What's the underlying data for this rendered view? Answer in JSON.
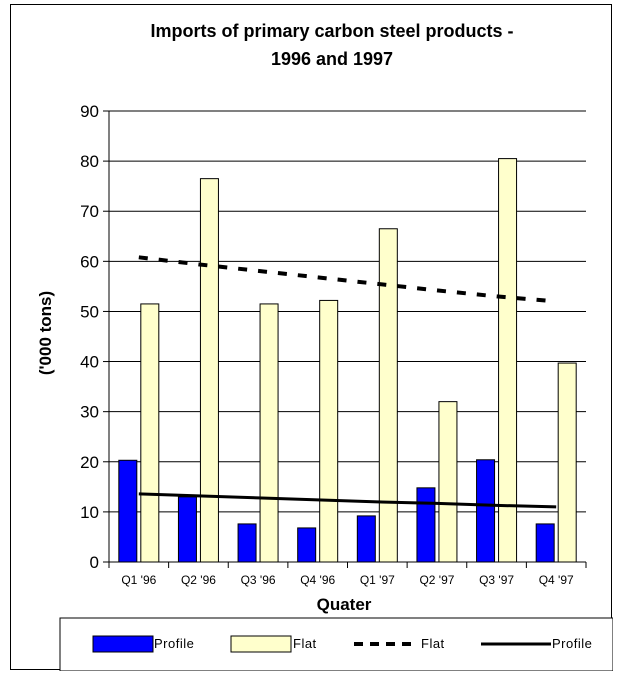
{
  "chart_data": {
    "type": "bar",
    "title_line1": "Imports of primary carbon steel products -",
    "title_line2": "1996 and 1997",
    "xlabel": "Quater",
    "ylabel": "('000 tons)",
    "ylim": [
      0,
      90
    ],
    "yticks": [
      0,
      10,
      20,
      30,
      40,
      50,
      60,
      70,
      80,
      90
    ],
    "grid": true,
    "legend_position": "bottom",
    "categories": [
      "Q1 '96",
      "Q2 '96",
      "Q3 '96",
      "Q4 '96",
      "Q1 '97",
      "Q2 '97",
      "Q3 '97",
      "Q4 '97"
    ],
    "series": [
      {
        "name": "Profile",
        "kind": "bar",
        "color": "#0000ff",
        "values": [
          20.3,
          13.0,
          7.6,
          6.8,
          9.2,
          14.8,
          20.4,
          7.6
        ]
      },
      {
        "name": "Flat",
        "kind": "bar",
        "color": "#ffffcc",
        "values": [
          51.5,
          76.5,
          51.5,
          52.2,
          66.5,
          32.0,
          80.5,
          39.7
        ]
      },
      {
        "name": "Flat",
        "kind": "trendline",
        "style": "dashed",
        "color": "#000000",
        "values": [
          60.8,
          59.4,
          58.1,
          56.8,
          55.5,
          54.2,
          53.0,
          52.0
        ]
      },
      {
        "name": "Profile",
        "kind": "trendline",
        "style": "solid",
        "color": "#000000",
        "values": [
          13.6,
          13.2,
          12.8,
          12.4,
          12.0,
          11.7,
          11.3,
          11.0
        ]
      }
    ]
  }
}
